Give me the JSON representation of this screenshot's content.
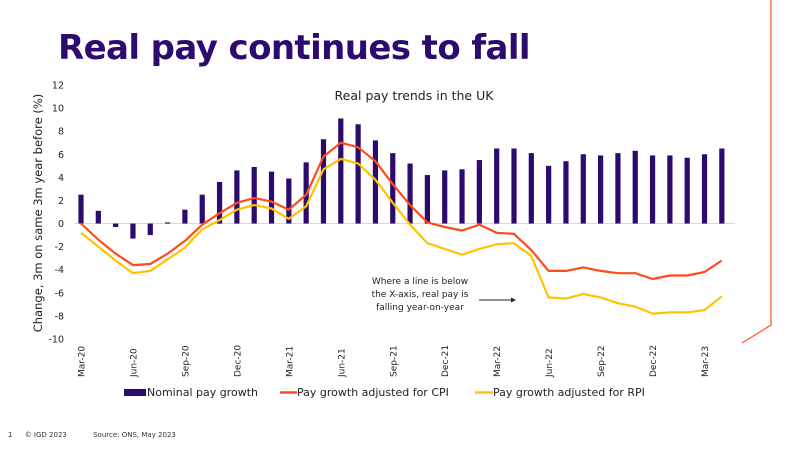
{
  "slide": {
    "title": "Real pay continues to fall",
    "page_number": "1",
    "copyright": "© IGD 2023",
    "source": "Source: ONS, May 2023"
  },
  "colors": {
    "title": "#2d0a6e",
    "nominal": "#2d0a6e",
    "cpi": "#ff4a1c",
    "rpi": "#ffc400",
    "accent_line": "#ff5a2a"
  },
  "chart_data": {
    "type": "bar",
    "title": "Real pay trends in the UK",
    "xlabel": "",
    "ylabel": "Change, 3m on same 3m year before (%)",
    "ylim": [
      -10,
      12
    ],
    "yticks": [
      12,
      10,
      8,
      6,
      4,
      2,
      0,
      -2,
      -4,
      -6,
      -8,
      -10
    ],
    "grid": false,
    "legend_position": "bottom",
    "categories": [
      "Mar-20",
      "Apr-20",
      "May-20",
      "Jun-20",
      "Jul-20",
      "Aug-20",
      "Sep-20",
      "Oct-20",
      "Nov-20",
      "Dec-20",
      "Jan-21",
      "Feb-21",
      "Mar-21",
      "Apr-21",
      "May-21",
      "Jun-21",
      "Jul-21",
      "Aug-21",
      "Sep-21",
      "Oct-21",
      "Nov-21",
      "Dec-21",
      "Jan-22",
      "Feb-22",
      "Mar-22",
      "Apr-22",
      "May-22",
      "Jun-22",
      "Jul-22",
      "Aug-22",
      "Sep-22",
      "Oct-22",
      "Nov-22",
      "Dec-22",
      "Jan-23",
      "Feb-23",
      "Mar-23",
      "Apr-23"
    ],
    "xtick_labels": [
      "Mar-20",
      "Jun-20",
      "Sep-20",
      "Dec-20",
      "Mar-21",
      "Jun-21",
      "Sep-21",
      "Dec-21",
      "Mar-22",
      "Jun-22",
      "Sep-22",
      "Dec-22",
      "Mar-23"
    ],
    "series": [
      {
        "name": "Nominal pay growth",
        "type": "bar",
        "values": [
          2.5,
          1.1,
          -0.3,
          -1.3,
          -1.0,
          0.1,
          1.2,
          2.5,
          3.6,
          4.6,
          4.9,
          4.5,
          3.9,
          5.3,
          7.3,
          9.1,
          8.6,
          7.2,
          6.1,
          5.2,
          4.2,
          4.6,
          4.7,
          5.5,
          6.5,
          6.5,
          6.1,
          5.0,
          5.4,
          6.0,
          5.9,
          6.1,
          6.3,
          5.9,
          5.9,
          5.7,
          6.0,
          6.5
        ]
      },
      {
        "name": "Pay growth adjusted for CPI",
        "type": "line",
        "values": [
          0.0,
          -1.4,
          -2.6,
          -3.6,
          -3.5,
          -2.6,
          -1.5,
          -0.1,
          0.9,
          1.8,
          2.2,
          1.9,
          1.2,
          2.5,
          5.8,
          7.0,
          6.6,
          5.4,
          3.4,
          1.6,
          0.1,
          -0.3,
          -0.6,
          -0.1,
          -0.8,
          -0.9,
          -2.3,
          -4.1,
          -4.1,
          -3.8,
          -4.1,
          -4.3,
          -4.3,
          -4.8,
          -4.5,
          -4.5,
          -4.2,
          -3.2
        ]
      },
      {
        "name": "Pay growth adjusted for RPI",
        "type": "line",
        "values": [
          -0.8,
          -2.0,
          -3.2,
          -4.3,
          -4.1,
          -3.1,
          -2.1,
          -0.5,
          0.3,
          1.2,
          1.6,
          1.3,
          0.4,
          1.5,
          4.7,
          5.6,
          5.2,
          3.8,
          1.8,
          -0.1,
          -1.7,
          -2.2,
          -2.7,
          -2.2,
          -1.8,
          -1.7,
          -2.8,
          -6.4,
          -6.5,
          -6.1,
          -6.4,
          -6.9,
          -7.2,
          -7.8,
          -7.7,
          -7.7,
          -7.5,
          -6.3
        ]
      }
    ],
    "annotations": [
      {
        "lines": [
          "Where a line is below",
          "the X-axis, real pay is",
          "falling year-on-year"
        ],
        "arrow": "right"
      }
    ]
  }
}
